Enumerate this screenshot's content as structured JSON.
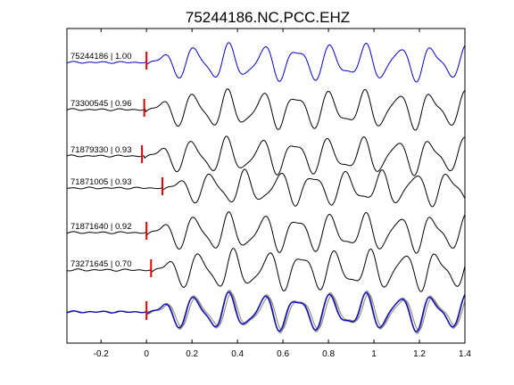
{
  "chart_data": {
    "type": "line",
    "title": "75244186.NC.PCC.EHZ",
    "xlabel": "",
    "ylabel": "",
    "xlim": [
      -0.35,
      1.4
    ],
    "x_ticks": [
      -0.2,
      0,
      0.2,
      0.4,
      0.6,
      0.8,
      1,
      1.2,
      1.4
    ],
    "x_tick_labels": [
      "-0.2",
      "0",
      "0.2",
      "0.4",
      "0.6",
      "0.8",
      "1",
      "1.2",
      "1.4"
    ],
    "grid": false,
    "colors": {
      "reference": "#0000cc",
      "correlated": "#000000",
      "stack_traces": "#808080",
      "pick_marker": "#dd0000"
    },
    "traces": [
      {
        "label": "75244186 | 1.00",
        "pick_time": 0.0,
        "amp": 1.0,
        "shift": 0.0,
        "color_role": "reference"
      },
      {
        "label": "73300545 | 0.96",
        "pick_time": -0.01,
        "amp": 1.05,
        "shift": -0.005,
        "color_role": "correlated"
      },
      {
        "label": "71879330 | 0.93",
        "pick_time": -0.02,
        "amp": 1.0,
        "shift": -0.01,
        "color_role": "correlated"
      },
      {
        "label": "71871005 | 0.93",
        "pick_time": 0.07,
        "amp": 0.95,
        "shift": 0.07,
        "color_role": "correlated"
      },
      {
        "label": "71871640 | 0.92",
        "pick_time": 0.0,
        "amp": 1.05,
        "shift": 0.0,
        "color_role": "correlated"
      },
      {
        "label": "73271645 | 0.70",
        "pick_time": 0.02,
        "amp": 1.1,
        "shift": 0.02,
        "color_role": "correlated"
      }
    ],
    "stack": {
      "pick_time": 0.0,
      "overlay_count": 6
    }
  }
}
